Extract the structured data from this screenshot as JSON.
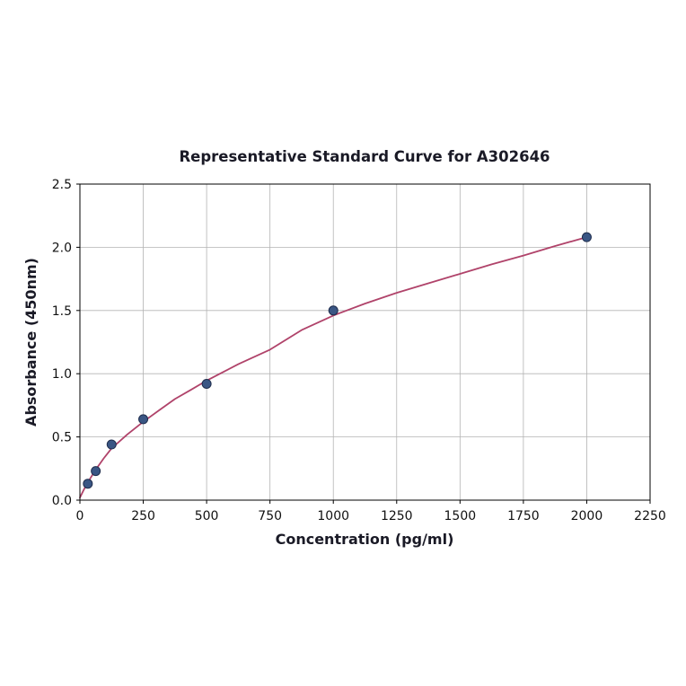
{
  "chart_data": {
    "type": "scatter",
    "title": "Representative Standard Curve for A302646",
    "xlabel": "Concentration (pg/ml)",
    "ylabel": "Absorbance (450nm)",
    "xlim": [
      0,
      2250
    ],
    "ylim": [
      0,
      2.5
    ],
    "xticks": [
      0,
      250,
      500,
      750,
      1000,
      1250,
      1500,
      1750,
      2000,
      2250
    ],
    "yticks": [
      0,
      0.5,
      1.0,
      1.5,
      2.0,
      2.5
    ],
    "grid": true,
    "legend": "none",
    "points": [
      {
        "x": 31.25,
        "y": 0.13
      },
      {
        "x": 62.5,
        "y": 0.23
      },
      {
        "x": 125,
        "y": 0.44
      },
      {
        "x": 250,
        "y": 0.64
      },
      {
        "x": 500,
        "y": 0.92
      },
      {
        "x": 1000,
        "y": 1.5
      },
      {
        "x": 2000,
        "y": 2.08
      }
    ],
    "curve": [
      [
        0,
        0.02
      ],
      [
        15,
        0.08
      ],
      [
        31,
        0.14
      ],
      [
        62,
        0.24
      ],
      [
        94,
        0.33
      ],
      [
        125,
        0.41
      ],
      [
        187,
        0.52
      ],
      [
        250,
        0.62
      ],
      [
        312,
        0.71
      ],
      [
        375,
        0.8
      ],
      [
        440,
        0.875
      ],
      [
        500,
        0.945
      ],
      [
        562,
        1.01
      ],
      [
        625,
        1.075
      ],
      [
        690,
        1.135
      ],
      [
        750,
        1.19
      ],
      [
        875,
        1.345
      ],
      [
        1000,
        1.46
      ],
      [
        1125,
        1.555
      ],
      [
        1250,
        1.64
      ],
      [
        1375,
        1.715
      ],
      [
        1500,
        1.79
      ],
      [
        1625,
        1.865
      ],
      [
        1750,
        1.935
      ],
      [
        1875,
        2.01
      ],
      [
        2000,
        2.08
      ]
    ],
    "colors": {
      "point_fill": "#3a5684",
      "point_edge": "#1f2d4d",
      "curve": "#b0436a",
      "grid": "#b3b3b3",
      "spine": "#000000"
    }
  }
}
